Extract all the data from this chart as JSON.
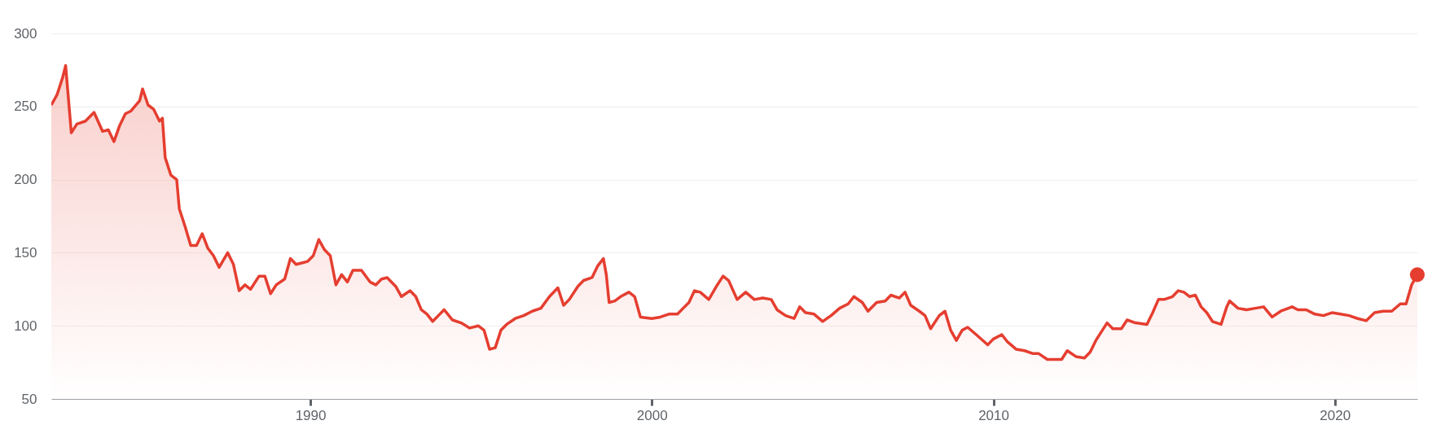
{
  "chart_data": {
    "type": "area",
    "x": [
      "1982-06",
      "1982-08",
      "1982-10",
      "1982-11",
      "1983-01",
      "1983-03",
      "1983-06",
      "1983-09",
      "1983-12",
      "1984-02",
      "1984-04",
      "1984-06",
      "1984-08",
      "1984-10",
      "1985-01",
      "1985-02",
      "1985-04",
      "1985-06",
      "1985-08",
      "1985-09",
      "1985-10",
      "1985-12",
      "1986-02",
      "1986-03",
      "1986-05",
      "1986-07",
      "1986-09",
      "1986-11",
      "1987-01",
      "1987-03",
      "1987-05",
      "1987-08",
      "1987-10",
      "1987-12",
      "1988-02",
      "1988-04",
      "1988-07",
      "1988-09",
      "1988-11",
      "1989-01",
      "1989-04",
      "1989-06",
      "1989-08",
      "1989-10",
      "1989-12",
      "1990-02",
      "1990-04",
      "1990-06",
      "1990-08",
      "1990-10",
      "1990-12",
      "1991-02",
      "1991-04",
      "1991-07",
      "1991-10",
      "1991-12",
      "1992-02",
      "1992-04",
      "1992-07",
      "1992-09",
      "1992-12",
      "1993-02",
      "1993-04",
      "1993-06",
      "1993-08",
      "1993-10",
      "1993-12",
      "1994-03",
      "1994-06",
      "1994-09",
      "1994-12",
      "1995-02",
      "1995-04",
      "1995-06",
      "1995-08",
      "1995-10",
      "1996-01",
      "1996-04",
      "1996-07",
      "1996-10",
      "1997-01",
      "1997-04",
      "1997-06",
      "1997-08",
      "1997-11",
      "1998-01",
      "1998-04",
      "1998-06",
      "1998-08",
      "1998-09",
      "1998-10",
      "1998-12",
      "1999-02",
      "1999-05",
      "1999-07",
      "1999-09",
      "2000-01",
      "2000-04",
      "2000-07",
      "2000-10",
      "2000-12",
      "2001-02",
      "2001-04",
      "2001-06",
      "2001-09",
      "2001-12",
      "2002-02",
      "2002-04",
      "2002-07",
      "2002-10",
      "2003-01",
      "2003-04",
      "2003-07",
      "2003-09",
      "2003-12",
      "2004-03",
      "2004-05",
      "2004-07",
      "2004-10",
      "2005-01",
      "2005-04",
      "2005-07",
      "2005-10",
      "2005-12",
      "2006-03",
      "2006-05",
      "2006-08",
      "2006-11",
      "2007-01",
      "2007-04",
      "2007-06",
      "2007-08",
      "2007-11",
      "2008-01",
      "2008-03",
      "2008-06",
      "2008-08",
      "2008-10",
      "2008-12",
      "2009-02",
      "2009-04",
      "2009-07",
      "2009-11",
      "2010-01",
      "2010-04",
      "2010-06",
      "2010-09",
      "2010-12",
      "2011-03",
      "2011-05",
      "2011-08",
      "2011-10",
      "2012-01",
      "2012-03",
      "2012-06",
      "2012-09",
      "2012-11",
      "2013-01",
      "2013-05",
      "2013-07",
      "2013-10",
      "2013-12",
      "2014-03",
      "2014-07",
      "2014-09",
      "2014-11",
      "2015-01",
      "2015-04",
      "2015-06",
      "2015-08",
      "2015-10",
      "2015-12",
      "2016-02",
      "2016-04",
      "2016-06",
      "2016-09",
      "2016-11",
      "2016-12",
      "2017-03",
      "2017-06",
      "2017-09",
      "2017-12",
      "2018-03",
      "2018-06",
      "2018-10",
      "2018-12",
      "2019-03",
      "2019-06",
      "2019-09",
      "2019-12",
      "2020-03",
      "2020-06",
      "2020-09",
      "2020-12",
      "2021-03",
      "2021-06",
      "2021-09",
      "2021-12",
      "2022-02",
      "2022-04",
      "2022-06"
    ],
    "series": [
      {
        "color": "#e53e30",
        "values": [
          251,
          258,
          270,
          278,
          232,
          238,
          240,
          246,
          233,
          234,
          226,
          237,
          245,
          247,
          254,
          262,
          251,
          248,
          240,
          242,
          215,
          203,
          200,
          180,
          168,
          155,
          155,
          163,
          153,
          148,
          140,
          150,
          142,
          124,
          128,
          125,
          134,
          134,
          122,
          128,
          132,
          146,
          142,
          143,
          144,
          148,
          159,
          152,
          148,
          128,
          135,
          130,
          138,
          138,
          130,
          128,
          132,
          133,
          127,
          120,
          124,
          120,
          111,
          108,
          103,
          107,
          111,
          104,
          102,
          98.5,
          100,
          97,
          84,
          85,
          97,
          101,
          105,
          107,
          110,
          112,
          120,
          126,
          114,
          118,
          127,
          131,
          133,
          141,
          146,
          135,
          116,
          117,
          120,
          123,
          120,
          106,
          105,
          106,
          108,
          108,
          112,
          116,
          124,
          123,
          118,
          128,
          134,
          131,
          118,
          123,
          118,
          119,
          118,
          111,
          107,
          105,
          113,
          109,
          108,
          103,
          107,
          112,
          115,
          120,
          116,
          110,
          116,
          117,
          121,
          119,
          123,
          114,
          110,
          107,
          98,
          107,
          110,
          97,
          90,
          97,
          99,
          94,
          87,
          91,
          94,
          89,
          84,
          83,
          81,
          81,
          77,
          77,
          77,
          83,
          79,
          78,
          82,
          90,
          102,
          98,
          98,
          104,
          102,
          101,
          109,
          118,
          118,
          120,
          124,
          123,
          120,
          121,
          113,
          109,
          103,
          101,
          113,
          117,
          112,
          111,
          112,
          113,
          106,
          110,
          113,
          111,
          111,
          108,
          107,
          109,
          108,
          107,
          105,
          103.5,
          109,
          110,
          110,
          115,
          115,
          128,
          135
        ]
      },
      {
        "type": "scatter",
        "color": "#e53e30",
        "marker": "circle",
        "x": [
          "2022-06"
        ],
        "values": [
          135
        ]
      }
    ],
    "xlim": [
      "1982-06",
      "2022-06"
    ],
    "xticks": [
      {
        "value": "1990",
        "label": "1990"
      },
      {
        "value": "2000",
        "label": "2000"
      },
      {
        "value": "2010",
        "label": "2010"
      },
      {
        "value": "2020",
        "label": "2020"
      }
    ],
    "ylim": [
      50,
      300
    ],
    "yticks": [
      50,
      100,
      150,
      200,
      250,
      300
    ],
    "grid": "y"
  }
}
